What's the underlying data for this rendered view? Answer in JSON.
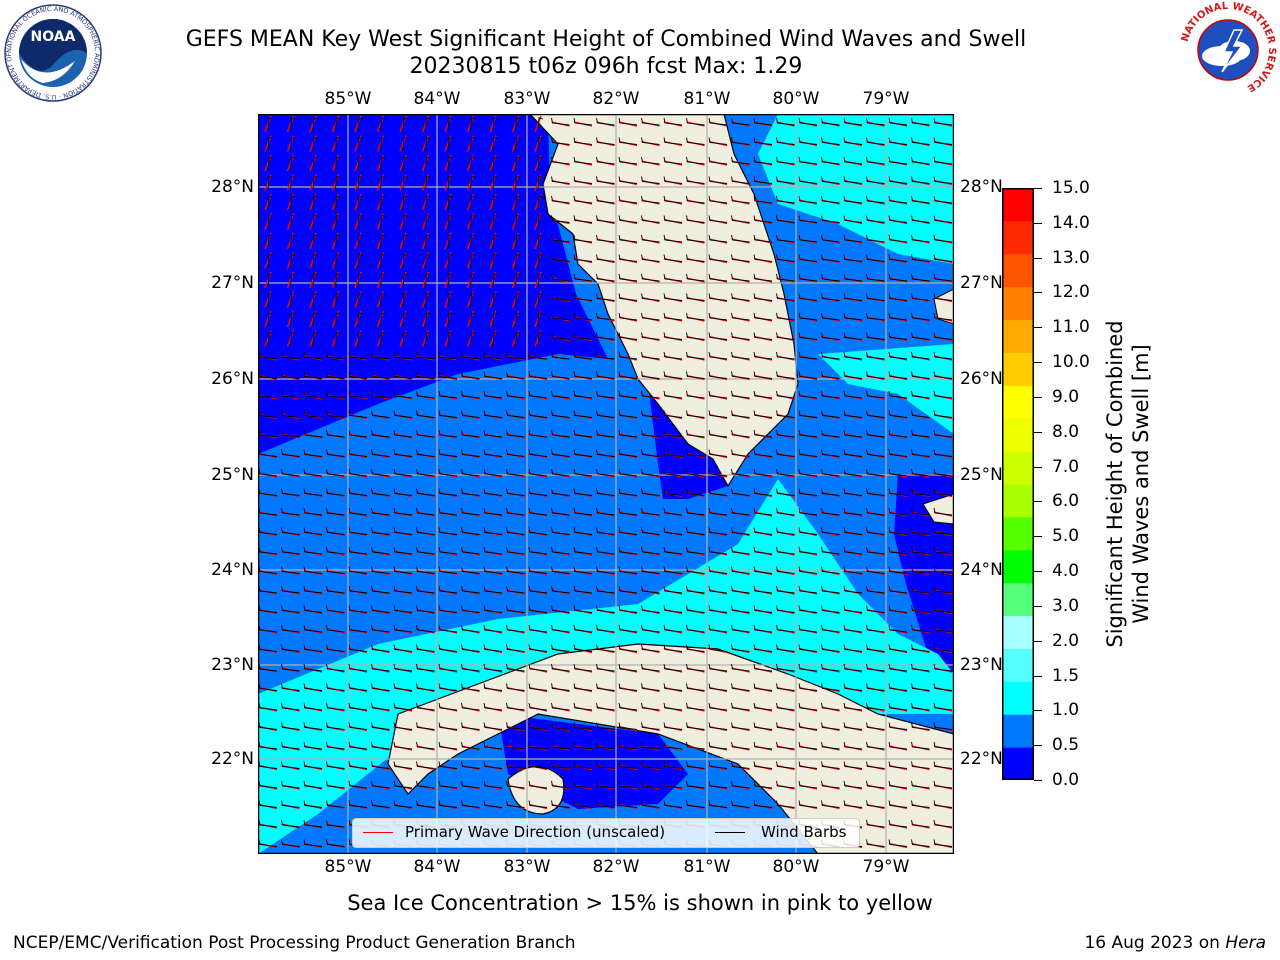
{
  "title": {
    "line1": "GEFS MEAN Key West Significant Height of Combined Wind Waves and Swell",
    "line2": "20230815 t06z 096h fcst   Max: 1.29"
  },
  "logos": {
    "left": "noaa-logo",
    "left_text": "NOAA",
    "left_ring": "NATIONAL OCEANIC AND ATMOSPHERIC ADMINISTRATION · U.S. DEPARTMENT OF COMMERCE",
    "right": "nws-logo",
    "right_ring": "NATIONAL WEATHER SERVICE"
  },
  "map": {
    "longitude_ticks": [
      "85°W",
      "84°W",
      "83°W",
      "82°W",
      "81°W",
      "80°W",
      "79°W"
    ],
    "latitude_ticks": [
      "28°N",
      "27°N",
      "26°N",
      "25°N",
      "24°N",
      "23°N",
      "22°N"
    ],
    "land_color": "#efeedf",
    "wind_barb_color": "#000000",
    "wave_direction_color": "#ff0000",
    "legend": {
      "wave": "Primary Wave Direction (unscaled)",
      "barbs": "Wind Barbs"
    }
  },
  "colorbar": {
    "label_line1": "Significant Height of Combined",
    "label_line2": "Wind Waves and Swell [m]",
    "ticks": [
      "15.0",
      "14.0",
      "13.0",
      "12.0",
      "11.0",
      "10.0",
      "9.0",
      "8.0",
      "7.0",
      "6.0",
      "5.0",
      "4.0",
      "3.0",
      "2.0",
      "1.5",
      "1.0",
      "0.5",
      "0.0"
    ],
    "colors_bottom_to_top": [
      "#0000ff",
      "#0078ff",
      "#00ffff",
      "#55ffff",
      "#aaffff",
      "#55ff78",
      "#00ff00",
      "#55ff00",
      "#aaff00",
      "#ccff00",
      "#eeff00",
      "#ffff00",
      "#ffcc00",
      "#ffaa00",
      "#ff7f00",
      "#ff5500",
      "#ff2a00",
      "#ff0000"
    ]
  },
  "caption": "Sea Ice Concentration > 15% is shown in pink to yellow",
  "footer": {
    "left": "NCEP/EMC/Verification Post Processing Product Generation Branch",
    "right_date": "16 Aug 2023 on ",
    "right_host": "Hera"
  }
}
